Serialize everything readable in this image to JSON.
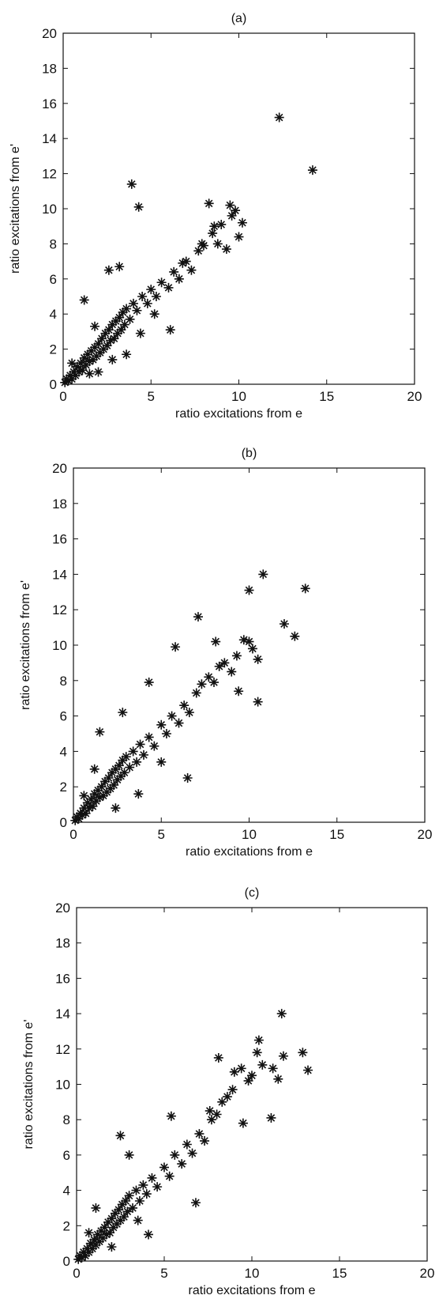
{
  "chart_data": [
    {
      "type": "scatter",
      "title": "(a)",
      "xlabel": "ratio excitations from e",
      "ylabel": "ratio excitations from e'",
      "xlim": [
        0,
        20
      ],
      "ylim": [
        0,
        20
      ],
      "xticks": [
        0,
        5,
        10,
        15,
        20
      ],
      "yticks": [
        0,
        2,
        4,
        6,
        8,
        10,
        12,
        14,
        16,
        18,
        20
      ],
      "marker": "asterisk",
      "grid": false,
      "series": [
        {
          "points": [
            [
              0.1,
              0.1
            ],
            [
              0.2,
              0.3
            ],
            [
              0.3,
              0.2
            ],
            [
              0.4,
              0.5
            ],
            [
              0.5,
              0.3
            ],
            [
              0.6,
              0.7
            ],
            [
              0.7,
              0.5
            ],
            [
              0.8,
              1.0
            ],
            [
              0.9,
              0.7
            ],
            [
              1.0,
              1.2
            ],
            [
              1.1,
              0.8
            ],
            [
              1.2,
              1.5
            ],
            [
              1.3,
              1.1
            ],
            [
              1.4,
              1.7
            ],
            [
              1.5,
              1.3
            ],
            [
              1.6,
              1.9
            ],
            [
              1.7,
              1.4
            ],
            [
              1.8,
              2.1
            ],
            [
              1.9,
              1.6
            ],
            [
              2.0,
              2.3
            ],
            [
              2.1,
              1.8
            ],
            [
              2.2,
              2.6
            ],
            [
              2.3,
              2.0
            ],
            [
              2.4,
              2.9
            ],
            [
              2.5,
              2.2
            ],
            [
              2.6,
              3.1
            ],
            [
              2.7,
              2.5
            ],
            [
              2.8,
              3.4
            ],
            [
              2.9,
              2.6
            ],
            [
              3.0,
              3.6
            ],
            [
              3.1,
              2.9
            ],
            [
              3.2,
              3.8
            ],
            [
              3.3,
              3.1
            ],
            [
              3.4,
              4.1
            ],
            [
              3.5,
              3.4
            ],
            [
              3.6,
              4.3
            ],
            [
              3.8,
              3.7
            ],
            [
              4.0,
              4.6
            ],
            [
              4.2,
              4.2
            ],
            [
              4.5,
              5.0
            ],
            [
              4.8,
              4.6
            ],
            [
              5.0,
              5.4
            ],
            [
              5.3,
              5.0
            ],
            [
              5.6,
              5.8
            ],
            [
              6.0,
              5.5
            ],
            [
              6.3,
              6.4
            ],
            [
              6.6,
              6.0
            ],
            [
              7.0,
              7.0
            ],
            [
              7.3,
              6.5
            ],
            [
              7.7,
              7.6
            ],
            [
              8.0,
              7.9
            ],
            [
              8.3,
              10.3
            ],
            [
              8.5,
              8.6
            ],
            [
              8.8,
              8.0
            ],
            [
              9.0,
              9.1
            ],
            [
              9.3,
              7.7
            ],
            [
              9.6,
              9.6
            ],
            [
              9.8,
              9.9
            ],
            [
              10.0,
              8.4
            ],
            [
              10.2,
              9.2
            ],
            [
              12.3,
              15.2
            ],
            [
              14.2,
              12.2
            ],
            [
              3.9,
              11.4
            ],
            [
              4.3,
              10.1
            ],
            [
              1.2,
              4.8
            ],
            [
              2.6,
              6.5
            ],
            [
              3.2,
              6.7
            ],
            [
              4.4,
              2.9
            ],
            [
              6.1,
              3.1
            ],
            [
              3.6,
              1.7
            ],
            [
              1.8,
              3.3
            ],
            [
              0.5,
              1.2
            ],
            [
              2.0,
              0.7
            ],
            [
              2.8,
              1.4
            ],
            [
              1.5,
              0.6
            ],
            [
              5.2,
              4.0
            ],
            [
              6.8,
              6.9
            ],
            [
              7.9,
              8.0
            ],
            [
              9.5,
              10.2
            ],
            [
              8.6,
              9.0
            ]
          ]
        }
      ]
    },
    {
      "type": "scatter",
      "title": "(b)",
      "xlabel": "ratio excitations from e",
      "ylabel": "ratio excitations from e'",
      "xlim": [
        0,
        20
      ],
      "ylim": [
        0,
        20
      ],
      "xticks": [
        0,
        5,
        10,
        15,
        20
      ],
      "yticks": [
        0,
        2,
        4,
        6,
        8,
        10,
        12,
        14,
        16,
        18,
        20
      ],
      "marker": "asterisk",
      "grid": false,
      "series": [
        {
          "points": [
            [
              0.1,
              0.1
            ],
            [
              0.2,
              0.3
            ],
            [
              0.3,
              0.2
            ],
            [
              0.4,
              0.5
            ],
            [
              0.5,
              0.4
            ],
            [
              0.6,
              0.8
            ],
            [
              0.7,
              0.5
            ],
            [
              0.8,
              1.1
            ],
            [
              0.9,
              0.8
            ],
            [
              1.0,
              1.3
            ],
            [
              1.1,
              0.9
            ],
            [
              1.2,
              1.6
            ],
            [
              1.3,
              1.2
            ],
            [
              1.4,
              1.8
            ],
            [
              1.5,
              1.4
            ],
            [
              1.6,
              2.0
            ],
            [
              1.7,
              1.5
            ],
            [
              1.8,
              2.3
            ],
            [
              1.9,
              1.7
            ],
            [
              2.0,
              2.5
            ],
            [
              2.1,
              1.9
            ],
            [
              2.2,
              2.8
            ],
            [
              2.3,
              2.1
            ],
            [
              2.4,
              3.0
            ],
            [
              2.5,
              2.4
            ],
            [
              2.6,
              3.2
            ],
            [
              2.7,
              2.6
            ],
            [
              2.8,
              3.5
            ],
            [
              2.9,
              2.8
            ],
            [
              3.0,
              3.7
            ],
            [
              3.2,
              3.1
            ],
            [
              3.4,
              4.0
            ],
            [
              3.6,
              3.4
            ],
            [
              3.8,
              4.4
            ],
            [
              4.0,
              3.8
            ],
            [
              4.3,
              4.8
            ],
            [
              4.6,
              4.3
            ],
            [
              5.0,
              5.5
            ],
            [
              5.3,
              5.0
            ],
            [
              5.6,
              6.0
            ],
            [
              6.0,
              5.6
            ],
            [
              6.3,
              6.6
            ],
            [
              6.6,
              6.2
            ],
            [
              7.0,
              7.3
            ],
            [
              7.3,
              7.8
            ],
            [
              7.7,
              8.2
            ],
            [
              8.0,
              7.9
            ],
            [
              8.3,
              8.8
            ],
            [
              8.6,
              9.0
            ],
            [
              9.0,
              8.5
            ],
            [
              9.3,
              9.4
            ],
            [
              9.7,
              10.3
            ],
            [
              10.0,
              10.2
            ],
            [
              10.2,
              9.8
            ],
            [
              10.5,
              9.2
            ],
            [
              12.0,
              11.2
            ],
            [
              13.2,
              13.2
            ],
            [
              10.8,
              14.0
            ],
            [
              10.0,
              13.1
            ],
            [
              12.6,
              10.5
            ],
            [
              7.1,
              11.6
            ],
            [
              5.8,
              9.9
            ],
            [
              1.5,
              5.1
            ],
            [
              2.8,
              6.2
            ],
            [
              4.3,
              7.9
            ],
            [
              6.5,
              2.5
            ],
            [
              9.4,
              7.4
            ],
            [
              10.5,
              6.8
            ],
            [
              3.7,
              1.6
            ],
            [
              2.4,
              0.8
            ],
            [
              1.2,
              3.0
            ],
            [
              0.6,
              1.5
            ],
            [
              5.0,
              3.4
            ],
            [
              8.1,
              10.2
            ]
          ]
        }
      ]
    },
    {
      "type": "scatter",
      "title": "(c)",
      "xlabel": "ratio excitations from e",
      "ylabel": "ratio excitations from e'",
      "xlim": [
        0,
        20
      ],
      "ylim": [
        0,
        20
      ],
      "xticks": [
        0,
        5,
        10,
        15,
        20
      ],
      "yticks": [
        0,
        2,
        4,
        6,
        8,
        10,
        12,
        14,
        16,
        18,
        20
      ],
      "marker": "asterisk",
      "grid": false,
      "series": [
        {
          "points": [
            [
              0.1,
              0.1
            ],
            [
              0.2,
              0.3
            ],
            [
              0.3,
              0.2
            ],
            [
              0.4,
              0.5
            ],
            [
              0.5,
              0.3
            ],
            [
              0.6,
              0.7
            ],
            [
              0.7,
              0.5
            ],
            [
              0.8,
              1.0
            ],
            [
              0.9,
              0.7
            ],
            [
              1.0,
              1.2
            ],
            [
              1.1,
              0.9
            ],
            [
              1.2,
              1.5
            ],
            [
              1.3,
              1.1
            ],
            [
              1.4,
              1.7
            ],
            [
              1.5,
              1.3
            ],
            [
              1.6,
              1.9
            ],
            [
              1.7,
              1.5
            ],
            [
              1.8,
              2.2
            ],
            [
              1.9,
              1.6
            ],
            [
              2.0,
              2.4
            ],
            [
              2.1,
              1.9
            ],
            [
              2.2,
              2.7
            ],
            [
              2.3,
              2.1
            ],
            [
              2.4,
              2.9
            ],
            [
              2.5,
              2.3
            ],
            [
              2.6,
              3.2
            ],
            [
              2.7,
              2.5
            ],
            [
              2.8,
              3.4
            ],
            [
              2.9,
              2.8
            ],
            [
              3.0,
              3.7
            ],
            [
              3.2,
              3.0
            ],
            [
              3.4,
              4.0
            ],
            [
              3.6,
              3.4
            ],
            [
              3.8,
              4.3
            ],
            [
              4.0,
              3.8
            ],
            [
              4.3,
              4.7
            ],
            [
              4.6,
              4.2
            ],
            [
              5.0,
              5.3
            ],
            [
              5.3,
              4.8
            ],
            [
              5.6,
              6.0
            ],
            [
              6.0,
              5.5
            ],
            [
              6.3,
              6.6
            ],
            [
              6.6,
              6.1
            ],
            [
              7.0,
              7.2
            ],
            [
              7.3,
              6.8
            ],
            [
              7.7,
              8.0
            ],
            [
              8.0,
              8.3
            ],
            [
              8.3,
              9.0
            ],
            [
              8.6,
              9.3
            ],
            [
              9.0,
              10.7
            ],
            [
              9.4,
              10.9
            ],
            [
              9.8,
              10.2
            ],
            [
              10.0,
              10.5
            ],
            [
              10.3,
              11.8
            ],
            [
              10.6,
              11.1
            ],
            [
              11.2,
              10.9
            ],
            [
              11.5,
              10.3
            ],
            [
              11.8,
              11.6
            ],
            [
              11.7,
              14.0
            ],
            [
              12.9,
              11.8
            ],
            [
              13.2,
              10.8
            ],
            [
              10.4,
              12.5
            ],
            [
              11.1,
              8.1
            ],
            [
              8.1,
              11.5
            ],
            [
              6.8,
              3.3
            ],
            [
              2.5,
              7.1
            ],
            [
              3.0,
              6.0
            ],
            [
              1.1,
              3.0
            ],
            [
              4.1,
              1.5
            ],
            [
              3.5,
              2.3
            ],
            [
              5.4,
              8.2
            ],
            [
              7.6,
              8.5
            ],
            [
              8.9,
              9.7
            ],
            [
              9.5,
              7.8
            ],
            [
              0.7,
              1.6
            ],
            [
              2.0,
              0.8
            ]
          ]
        }
      ]
    }
  ]
}
